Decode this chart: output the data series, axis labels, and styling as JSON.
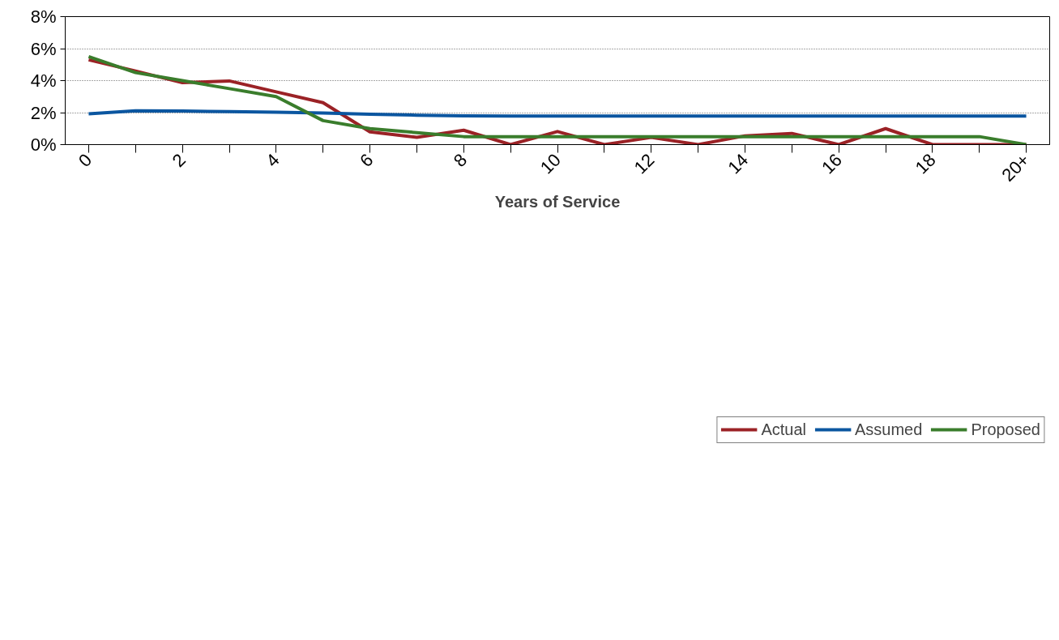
{
  "chart_data": {
    "type": "line",
    "xlabel": "Years of Service",
    "categories": [
      "0",
      null,
      "2",
      null,
      "4",
      null,
      "6",
      null,
      "8",
      null,
      "10",
      null,
      "12",
      null,
      "14",
      null,
      "16",
      null,
      "18",
      null,
      "20+"
    ],
    "series": [
      {
        "name": "Actual",
        "color": "#9b2226",
        "values": [
          5.3,
          4.6,
          3.87,
          3.98,
          3.3,
          2.62,
          0.8,
          0.46,
          0.9,
          0,
          0.82,
          0,
          0.45,
          0,
          0.55,
          0.7,
          0,
          1.0,
          0,
          0,
          0
        ]
      },
      {
        "name": "Assumed",
        "color": "#0b56a0",
        "values": [
          1.93,
          2.12,
          2.1,
          2.06,
          2.03,
          1.97,
          1.9,
          1.84,
          1.8,
          1.79,
          1.79,
          1.79,
          1.79,
          1.79,
          1.79,
          1.79,
          1.79,
          1.79,
          1.78,
          1.79,
          1.79
        ]
      },
      {
        "name": "Proposed",
        "color": "#3a7d2c",
        "values": [
          5.5,
          4.5,
          4.0,
          3.5,
          3.0,
          1.5,
          1.0,
          0.75,
          0.5,
          0.5,
          0.5,
          0.5,
          0.5,
          0.5,
          0.5,
          0.5,
          0.5,
          0.5,
          0.5,
          0.5,
          0
        ]
      }
    ],
    "ylim": [
      0,
      8
    ],
    "yticks": [
      {
        "value": 0,
        "label": "0%"
      },
      {
        "value": 2,
        "label": "2%"
      },
      {
        "value": 4,
        "label": "4%"
      },
      {
        "value": 6,
        "label": "6%"
      },
      {
        "value": 8,
        "label": "8%"
      }
    ],
    "grid": "y",
    "legend": "bottom",
    "line_style": "solid"
  }
}
